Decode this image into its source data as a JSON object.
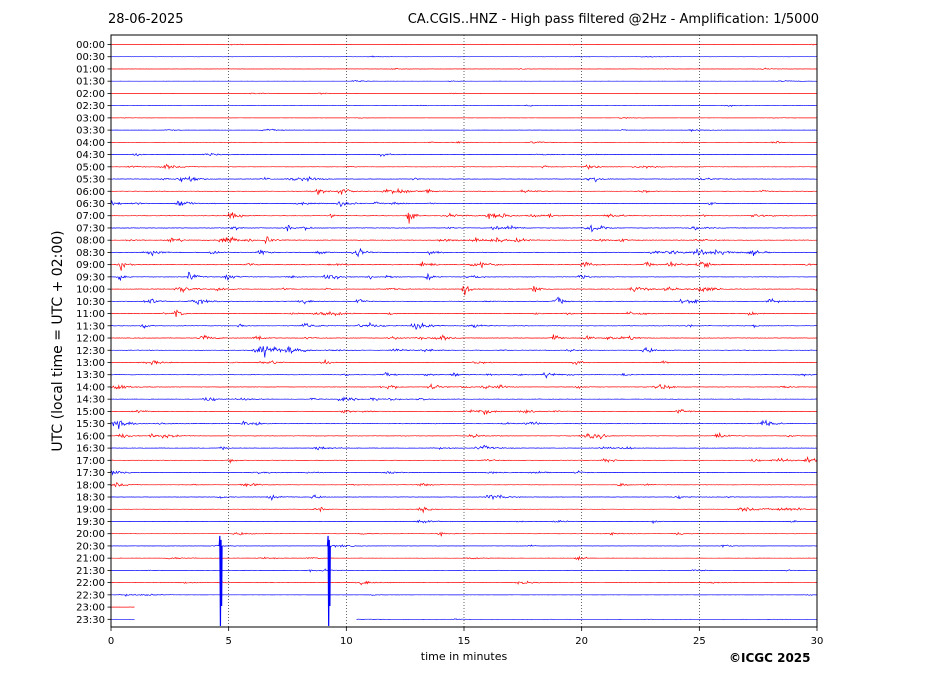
{
  "header": {
    "date": "28-06-2025",
    "title": "CA.CGIS..HNZ - High pass filtered @2Hz - Amplification: 1/5000"
  },
  "credit": "©ICGC 2025",
  "colors": {
    "even_trace": "#ff0000",
    "odd_trace": "#0000ff",
    "grid": "#000000",
    "background": "#ffffff"
  },
  "chart_data": {
    "type": "line",
    "title": "CA.CGIS..HNZ - High pass filtered @2Hz - Amplification: 1/5000",
    "xlabel": "time in minutes",
    "ylabel": "UTC (local time = UTC + 02:00)",
    "xlim": [
      0,
      30
    ],
    "xticks": [
      "0",
      "5",
      "10",
      "15",
      "20",
      "25",
      "30"
    ],
    "grid": "vertical dotted lines at 5, 10, 15, 20, 25",
    "rows": [
      "00:00",
      "00:30",
      "01:00",
      "01:30",
      "02:00",
      "02:30",
      "03:00",
      "03:30",
      "04:00",
      "04:30",
      "05:00",
      "05:30",
      "06:00",
      "06:30",
      "07:00",
      "07:30",
      "08:00",
      "08:30",
      "09:00",
      "09:30",
      "10:00",
      "10:30",
      "11:00",
      "11:30",
      "12:00",
      "12:30",
      "13:00",
      "13:30",
      "14:00",
      "14:30",
      "15:00",
      "15:30",
      "16:00",
      "16:30",
      "17:00",
      "17:30",
      "18:00",
      "18:30",
      "19:00",
      "19:30",
      "20:00",
      "20:30",
      "21:00",
      "21:30",
      "22:00",
      "22:30",
      "23:00",
      "23:30"
    ],
    "activity": [
      0.3,
      0.3,
      0.4,
      0.3,
      0.3,
      0.3,
      0.4,
      0.4,
      0.5,
      0.6,
      0.8,
      1.0,
      1.0,
      1.1,
      1.1,
      1.2,
      1.3,
      1.2,
      1.2,
      1.1,
      1.2,
      1.1,
      1.1,
      1.1,
      1.1,
      1.1,
      1.0,
      1.0,
      1.0,
      0.9,
      0.9,
      1.0,
      1.0,
      0.9,
      0.9,
      0.9,
      0.8,
      0.8,
      0.8,
      0.7,
      0.6,
      0.6,
      0.6,
      0.6,
      0.6,
      0.4,
      0.3,
      0.3
    ],
    "spikes": [
      {
        "row": 41,
        "minute": 4.65,
        "amplitude": 85
      },
      {
        "row": 41,
        "minute": 9.25,
        "amplitude": 85
      }
    ],
    "data_end": {
      "row": 47,
      "minute": 10.2
    },
    "gaps": [
      {
        "row": 46,
        "from": 1.0,
        "to": 30.0
      },
      {
        "row": 47,
        "from": 1.0,
        "to": 10.4
      }
    ]
  }
}
